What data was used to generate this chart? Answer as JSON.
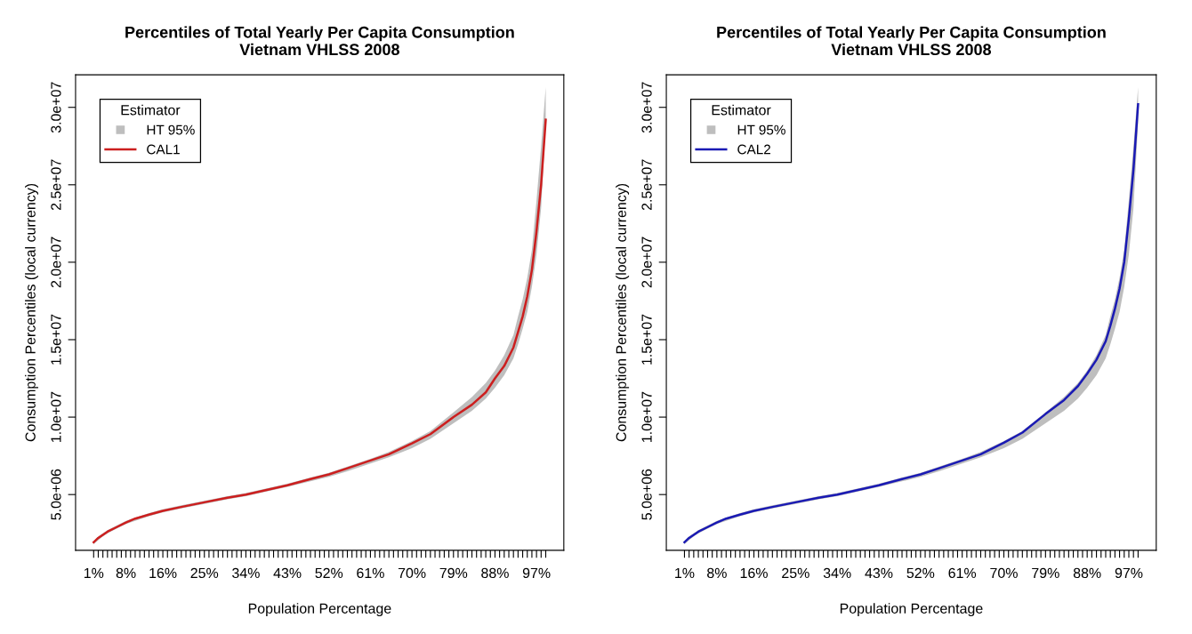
{
  "chart_data": [
    {
      "type": "line",
      "title": "Percentiles of Total Yearly Per Capita Consumption",
      "subtitle": "Vietnam VHLSS 2008",
      "xlabel": "Population Percentage",
      "ylabel": "Consumption Percentiles (local currency)",
      "legend_title": "Estimator",
      "legend": "top left",
      "grid": false,
      "x": [
        1,
        2,
        3,
        4,
        6,
        8,
        10,
        13,
        16,
        20,
        25,
        30,
        34,
        40,
        43,
        48,
        52,
        56,
        61,
        65,
        70,
        74,
        79,
        83,
        86,
        88,
        90,
        92,
        93,
        94,
        95,
        96,
        97,
        98,
        99
      ],
      "series": [
        {
          "name": "HT 95%",
          "type": "area",
          "color": "#bebebe",
          "values": [
            null,
            null,
            null,
            null,
            null,
            null,
            null,
            null,
            null,
            null,
            null,
            null,
            null,
            null,
            null,
            null,
            null,
            null,
            null,
            null,
            null,
            null,
            null,
            null,
            null,
            null,
            null,
            null,
            null,
            null,
            null,
            null,
            null,
            null,
            null
          ],
          "lower": [
            1800000,
            2050000,
            2300000,
            2500000,
            2800000,
            3100000,
            3300000,
            3600000,
            3850000,
            4100000,
            4400000,
            4700000,
            4900000,
            5300000,
            5500000,
            5850000,
            6150000,
            6500000,
            7000000,
            7400000,
            8000000,
            8600000,
            9600000,
            10400000,
            11200000,
            11900000,
            12700000,
            13800000,
            14700000,
            15700000,
            16800000,
            18400000,
            20500000,
            23500000,
            29000000
          ],
          "upper": [
            2000000,
            2300000,
            2500000,
            2700000,
            3000000,
            3300000,
            3500000,
            3800000,
            4050000,
            4300000,
            4600000,
            4900000,
            5100000,
            5500000,
            5700000,
            6100000,
            6400000,
            6800000,
            7300000,
            7750000,
            8450000,
            9100000,
            10300000,
            11300000,
            12200000,
            13000000,
            14000000,
            15300000,
            16500000,
            17600000,
            19000000,
            20800000,
            24000000,
            27500000,
            31300000
          ]
        },
        {
          "name": "CAL1",
          "color": "#cc1f1f",
          "values": [
            1920000,
            2200000,
            2400000,
            2600000,
            2900000,
            3200000,
            3450000,
            3700000,
            3950000,
            4200000,
            4500000,
            4800000,
            5000000,
            5400000,
            5600000,
            6000000,
            6300000,
            6700000,
            7200000,
            7600000,
            8300000,
            8900000,
            10000000,
            10800000,
            11600000,
            12500000,
            13300000,
            14500000,
            15500000,
            16500000,
            17800000,
            19500000,
            22000000,
            25000000,
            29200000
          ]
        }
      ],
      "xlim": [
        -2.92,
        102.92
      ],
      "ylim": [
        1400000,
        32100000
      ],
      "xticks": [
        {
          "value": 1,
          "label": "1%"
        },
        {
          "value": 2,
          "label": null
        },
        {
          "value": 3,
          "label": null
        },
        {
          "value": 4,
          "label": null
        },
        {
          "value": 5,
          "label": null
        },
        {
          "value": 6,
          "label": null
        },
        {
          "value": 7,
          "label": null
        },
        {
          "value": 8,
          "label": "8%"
        },
        {
          "value": 9,
          "label": null
        },
        {
          "value": 10,
          "label": null
        },
        {
          "value": 11,
          "label": null
        },
        {
          "value": 12,
          "label": null
        },
        {
          "value": 13,
          "label": null
        },
        {
          "value": 14,
          "label": null
        },
        {
          "value": 15,
          "label": null
        },
        {
          "value": 16,
          "label": "16%"
        },
        {
          "value": 17,
          "label": null
        },
        {
          "value": 18,
          "label": null
        },
        {
          "value": 19,
          "label": null
        },
        {
          "value": 20,
          "label": null
        },
        {
          "value": 21,
          "label": null
        },
        {
          "value": 22,
          "label": null
        },
        {
          "value": 23,
          "label": null
        },
        {
          "value": 24,
          "label": null
        },
        {
          "value": 25,
          "label": "25%"
        },
        {
          "value": 26,
          "label": null
        },
        {
          "value": 27,
          "label": null
        },
        {
          "value": 28,
          "label": null
        },
        {
          "value": 29,
          "label": null
        },
        {
          "value": 30,
          "label": null
        },
        {
          "value": 31,
          "label": null
        },
        {
          "value": 32,
          "label": null
        },
        {
          "value": 33,
          "label": null
        },
        {
          "value": 34,
          "label": "34%"
        },
        {
          "value": 35,
          "label": null
        },
        {
          "value": 36,
          "label": null
        },
        {
          "value": 37,
          "label": null
        },
        {
          "value": 38,
          "label": null
        },
        {
          "value": 39,
          "label": null
        },
        {
          "value": 40,
          "label": null
        },
        {
          "value": 41,
          "label": null
        },
        {
          "value": 42,
          "label": null
        },
        {
          "value": 43,
          "label": "43%"
        },
        {
          "value": 44,
          "label": null
        },
        {
          "value": 45,
          "label": null
        },
        {
          "value": 46,
          "label": null
        },
        {
          "value": 47,
          "label": null
        },
        {
          "value": 48,
          "label": null
        },
        {
          "value": 49,
          "label": null
        },
        {
          "value": 50,
          "label": null
        },
        {
          "value": 51,
          "label": null
        },
        {
          "value": 52,
          "label": "52%"
        },
        {
          "value": 53,
          "label": null
        },
        {
          "value": 54,
          "label": null
        },
        {
          "value": 55,
          "label": null
        },
        {
          "value": 56,
          "label": null
        },
        {
          "value": 57,
          "label": null
        },
        {
          "value": 58,
          "label": null
        },
        {
          "value": 59,
          "label": null
        },
        {
          "value": 60,
          "label": null
        },
        {
          "value": 61,
          "label": "61%"
        },
        {
          "value": 62,
          "label": null
        },
        {
          "value": 63,
          "label": null
        },
        {
          "value": 64,
          "label": null
        },
        {
          "value": 65,
          "label": null
        },
        {
          "value": 66,
          "label": null
        },
        {
          "value": 67,
          "label": null
        },
        {
          "value": 68,
          "label": null
        },
        {
          "value": 69,
          "label": null
        },
        {
          "value": 70,
          "label": "70%"
        },
        {
          "value": 71,
          "label": null
        },
        {
          "value": 72,
          "label": null
        },
        {
          "value": 73,
          "label": null
        },
        {
          "value": 74,
          "label": null
        },
        {
          "value": 75,
          "label": null
        },
        {
          "value": 76,
          "label": null
        },
        {
          "value": 77,
          "label": null
        },
        {
          "value": 78,
          "label": null
        },
        {
          "value": 79,
          "label": "79%"
        },
        {
          "value": 80,
          "label": null
        },
        {
          "value": 81,
          "label": null
        },
        {
          "value": 82,
          "label": null
        },
        {
          "value": 83,
          "label": null
        },
        {
          "value": 84,
          "label": null
        },
        {
          "value": 85,
          "label": null
        },
        {
          "value": 86,
          "label": null
        },
        {
          "value": 87,
          "label": null
        },
        {
          "value": 88,
          "label": "88%"
        },
        {
          "value": 89,
          "label": null
        },
        {
          "value": 90,
          "label": null
        },
        {
          "value": 91,
          "label": null
        },
        {
          "value": 92,
          "label": null
        },
        {
          "value": 93,
          "label": null
        },
        {
          "value": 94,
          "label": null
        },
        {
          "value": 95,
          "label": null
        },
        {
          "value": 96,
          "label": null
        },
        {
          "value": 97,
          "label": "97%"
        },
        {
          "value": 98,
          "label": null
        },
        {
          "value": 99,
          "label": null
        }
      ],
      "yticks": [
        {
          "value": 5000000,
          "label": "5.0e+06"
        },
        {
          "value": 10000000,
          "label": "1.0e+07"
        },
        {
          "value": 15000000,
          "label": "1.5e+07"
        },
        {
          "value": 20000000,
          "label": "2.0e+07"
        },
        {
          "value": 25000000,
          "label": "2.5e+07"
        },
        {
          "value": 30000000,
          "label": "3.0e+07"
        }
      ]
    },
    {
      "type": "line",
      "title": "Percentiles of Total Yearly Per Capita Consumption",
      "subtitle": "Vietnam VHLSS 2008",
      "xlabel": "Population Percentage",
      "ylabel": "Consumption Percentiles (local currency)",
      "legend_title": "Estimator",
      "legend": "top left",
      "grid": false,
      "x": [
        1,
        2,
        3,
        4,
        6,
        8,
        10,
        13,
        16,
        20,
        25,
        30,
        34,
        40,
        43,
        48,
        52,
        56,
        61,
        65,
        70,
        74,
        79,
        83,
        86,
        88,
        90,
        92,
        93,
        94,
        95,
        96,
        97,
        98,
        99
      ],
      "series": [
        {
          "name": "HT 95%",
          "type": "area",
          "color": "#bebebe",
          "values": [
            null,
            null,
            null,
            null,
            null,
            null,
            null,
            null,
            null,
            null,
            null,
            null,
            null,
            null,
            null,
            null,
            null,
            null,
            null,
            null,
            null,
            null,
            null,
            null,
            null,
            null,
            null,
            null,
            null,
            null,
            null,
            null,
            null,
            null,
            null
          ],
          "lower": [
            1800000,
            2050000,
            2300000,
            2500000,
            2800000,
            3100000,
            3300000,
            3600000,
            3850000,
            4100000,
            4400000,
            4700000,
            4900000,
            5300000,
            5500000,
            5850000,
            6150000,
            6500000,
            7000000,
            7400000,
            8000000,
            8600000,
            9600000,
            10400000,
            11200000,
            11900000,
            12700000,
            13800000,
            14700000,
            15700000,
            16800000,
            18400000,
            20500000,
            23500000,
            29000000
          ],
          "upper": [
            2000000,
            2300000,
            2500000,
            2700000,
            3000000,
            3300000,
            3500000,
            3800000,
            4050000,
            4300000,
            4600000,
            4900000,
            5100000,
            5500000,
            5700000,
            6100000,
            6400000,
            6800000,
            7300000,
            7750000,
            8450000,
            9100000,
            10300000,
            11300000,
            12200000,
            13000000,
            14000000,
            15300000,
            16500000,
            17600000,
            19000000,
            20800000,
            24000000,
            27500000,
            31300000
          ]
        },
        {
          "name": "CAL2",
          "color": "#1a1ab4",
          "values": [
            1920000,
            2200000,
            2400000,
            2600000,
            2900000,
            3200000,
            3450000,
            3700000,
            3950000,
            4200000,
            4500000,
            4800000,
            5000000,
            5400000,
            5600000,
            6000000,
            6300000,
            6700000,
            7200000,
            7600000,
            8350000,
            9000000,
            10200000,
            11100000,
            12000000,
            12800000,
            13700000,
            14900000,
            15900000,
            17000000,
            18300000,
            20000000,
            22800000,
            26000000,
            30200000
          ]
        }
      ],
      "xlim": [
        -2.92,
        102.92
      ],
      "ylim": [
        1400000,
        32100000
      ],
      "xticks": [
        {
          "value": 1,
          "label": "1%"
        },
        {
          "value": 2,
          "label": null
        },
        {
          "value": 3,
          "label": null
        },
        {
          "value": 4,
          "label": null
        },
        {
          "value": 5,
          "label": null
        },
        {
          "value": 6,
          "label": null
        },
        {
          "value": 7,
          "label": null
        },
        {
          "value": 8,
          "label": "8%"
        },
        {
          "value": 9,
          "label": null
        },
        {
          "value": 10,
          "label": null
        },
        {
          "value": 11,
          "label": null
        },
        {
          "value": 12,
          "label": null
        },
        {
          "value": 13,
          "label": null
        },
        {
          "value": 14,
          "label": null
        },
        {
          "value": 15,
          "label": null
        },
        {
          "value": 16,
          "label": "16%"
        },
        {
          "value": 17,
          "label": null
        },
        {
          "value": 18,
          "label": null
        },
        {
          "value": 19,
          "label": null
        },
        {
          "value": 20,
          "label": null
        },
        {
          "value": 21,
          "label": null
        },
        {
          "value": 22,
          "label": null
        },
        {
          "value": 23,
          "label": null
        },
        {
          "value": 24,
          "label": null
        },
        {
          "value": 25,
          "label": "25%"
        },
        {
          "value": 26,
          "label": null
        },
        {
          "value": 27,
          "label": null
        },
        {
          "value": 28,
          "label": null
        },
        {
          "value": 29,
          "label": null
        },
        {
          "value": 30,
          "label": null
        },
        {
          "value": 31,
          "label": null
        },
        {
          "value": 32,
          "label": null
        },
        {
          "value": 33,
          "label": null
        },
        {
          "value": 34,
          "label": "34%"
        },
        {
          "value": 35,
          "label": null
        },
        {
          "value": 36,
          "label": null
        },
        {
          "value": 37,
          "label": null
        },
        {
          "value": 38,
          "label": null
        },
        {
          "value": 39,
          "label": null
        },
        {
          "value": 40,
          "label": null
        },
        {
          "value": 41,
          "label": null
        },
        {
          "value": 42,
          "label": null
        },
        {
          "value": 43,
          "label": "43%"
        },
        {
          "value": 44,
          "label": null
        },
        {
          "value": 45,
          "label": null
        },
        {
          "value": 46,
          "label": null
        },
        {
          "value": 47,
          "label": null
        },
        {
          "value": 48,
          "label": null
        },
        {
          "value": 49,
          "label": null
        },
        {
          "value": 50,
          "label": null
        },
        {
          "value": 51,
          "label": null
        },
        {
          "value": 52,
          "label": "52%"
        },
        {
          "value": 53,
          "label": null
        },
        {
          "value": 54,
          "label": null
        },
        {
          "value": 55,
          "label": null
        },
        {
          "value": 56,
          "label": null
        },
        {
          "value": 57,
          "label": null
        },
        {
          "value": 58,
          "label": null
        },
        {
          "value": 59,
          "label": null
        },
        {
          "value": 60,
          "label": null
        },
        {
          "value": 61,
          "label": "61%"
        },
        {
          "value": 62,
          "label": null
        },
        {
          "value": 63,
          "label": null
        },
        {
          "value": 64,
          "label": null
        },
        {
          "value": 65,
          "label": null
        },
        {
          "value": 66,
          "label": null
        },
        {
          "value": 67,
          "label": null
        },
        {
          "value": 68,
          "label": null
        },
        {
          "value": 69,
          "label": null
        },
        {
          "value": 70,
          "label": "70%"
        },
        {
          "value": 71,
          "label": null
        },
        {
          "value": 72,
          "label": null
        },
        {
          "value": 73,
          "label": null
        },
        {
          "value": 74,
          "label": null
        },
        {
          "value": 75,
          "label": null
        },
        {
          "value": 76,
          "label": null
        },
        {
          "value": 77,
          "label": null
        },
        {
          "value": 78,
          "label": null
        },
        {
          "value": 79,
          "label": "79%"
        },
        {
          "value": 80,
          "label": null
        },
        {
          "value": 81,
          "label": null
        },
        {
          "value": 82,
          "label": null
        },
        {
          "value": 83,
          "label": null
        },
        {
          "value": 84,
          "label": null
        },
        {
          "value": 85,
          "label": null
        },
        {
          "value": 86,
          "label": null
        },
        {
          "value": 87,
          "label": null
        },
        {
          "value": 88,
          "label": "88%"
        },
        {
          "value": 89,
          "label": null
        },
        {
          "value": 90,
          "label": null
        },
        {
          "value": 91,
          "label": null
        },
        {
          "value": 92,
          "label": null
        },
        {
          "value": 93,
          "label": null
        },
        {
          "value": 94,
          "label": null
        },
        {
          "value": 95,
          "label": null
        },
        {
          "value": 96,
          "label": null
        },
        {
          "value": 97,
          "label": "97%"
        },
        {
          "value": 98,
          "label": null
        },
        {
          "value": 99,
          "label": null
        }
      ],
      "yticks": [
        {
          "value": 5000000,
          "label": "5.0e+06"
        },
        {
          "value": 10000000,
          "label": "1.0e+07"
        },
        {
          "value": 15000000,
          "label": "1.5e+07"
        },
        {
          "value": 20000000,
          "label": "2.0e+07"
        },
        {
          "value": 25000000,
          "label": "2.5e+07"
        },
        {
          "value": 30000000,
          "label": "3.0e+07"
        }
      ]
    }
  ]
}
